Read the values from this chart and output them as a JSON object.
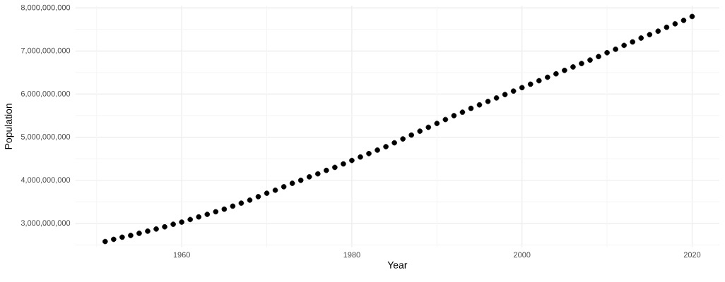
{
  "chart_data": {
    "type": "scatter",
    "xlabel": "Year",
    "ylabel": "Population",
    "grid": true,
    "xlim": [
      1947.5,
      2023.2
    ],
    "xticks": [
      {
        "value": 1950,
        "label": null
      },
      {
        "value": 1960,
        "label": "1960"
      },
      {
        "value": 1970,
        "label": null
      },
      {
        "value": 1980,
        "label": "1980"
      },
      {
        "value": 1990,
        "label": null
      },
      {
        "value": 2000,
        "label": "2000"
      },
      {
        "value": 2010,
        "label": null
      },
      {
        "value": 2020,
        "label": "2020"
      }
    ],
    "ylim": [
      2450000000,
      8050000000
    ],
    "yticks": [
      {
        "value": 2500000000,
        "label": null
      },
      {
        "value": 3000000000,
        "label": "3,000,000,000"
      },
      {
        "value": 3500000000,
        "label": null
      },
      {
        "value": 4000000000,
        "label": "4,000,000,000"
      },
      {
        "value": 4500000000,
        "label": null
      },
      {
        "value": 5000000000,
        "label": "5,000,000,000"
      },
      {
        "value": 5500000000,
        "label": null
      },
      {
        "value": 6000000000,
        "label": "6,000,000,000"
      },
      {
        "value": 6500000000,
        "label": null
      },
      {
        "value": 7000000000,
        "label": "7,000,000,000"
      },
      {
        "value": 7500000000,
        "label": null
      },
      {
        "value": 8000000000,
        "label": "8,000,000,000"
      }
    ],
    "series": [
      {
        "color": "#000000",
        "x": [
          1951,
          1952,
          1953,
          1954,
          1955,
          1956,
          1957,
          1958,
          1959,
          1960,
          1961,
          1962,
          1963,
          1964,
          1965,
          1966,
          1967,
          1968,
          1969,
          1970,
          1971,
          1972,
          1973,
          1974,
          1975,
          1976,
          1977,
          1978,
          1979,
          1980,
          1981,
          1982,
          1983,
          1984,
          1985,
          1986,
          1987,
          1988,
          1989,
          1990,
          1991,
          1992,
          1993,
          1994,
          1995,
          1996,
          1997,
          1998,
          1999,
          2000,
          2001,
          2002,
          2003,
          2004,
          2005,
          2006,
          2007,
          2008,
          2009,
          2010,
          2011,
          2012,
          2013,
          2014,
          2015,
          2016,
          2017,
          2018,
          2019,
          2020
        ],
        "values": [
          2580000000,
          2630000000,
          2680000000,
          2720000000,
          2770000000,
          2820000000,
          2870000000,
          2920000000,
          2980000000,
          3030000000,
          3090000000,
          3150000000,
          3210000000,
          3270000000,
          3330000000,
          3400000000,
          3470000000,
          3540000000,
          3620000000,
          3700000000,
          3770000000,
          3850000000,
          3930000000,
          4000000000,
          4080000000,
          4150000000,
          4230000000,
          4300000000,
          4380000000,
          4460000000,
          4540000000,
          4620000000,
          4700000000,
          4780000000,
          4870000000,
          4960000000,
          5050000000,
          5140000000,
          5230000000,
          5320000000,
          5410000000,
          5500000000,
          5580000000,
          5670000000,
          5750000000,
          5830000000,
          5910000000,
          5990000000,
          6070000000,
          6150000000,
          6230000000,
          6310000000,
          6390000000,
          6470000000,
          6550000000,
          6630000000,
          6710000000,
          6790000000,
          6870000000,
          6960000000,
          7040000000,
          7130000000,
          7210000000,
          7300000000,
          7380000000,
          7460000000,
          7550000000,
          7630000000,
          7710000000,
          7800000000
        ]
      }
    ]
  }
}
